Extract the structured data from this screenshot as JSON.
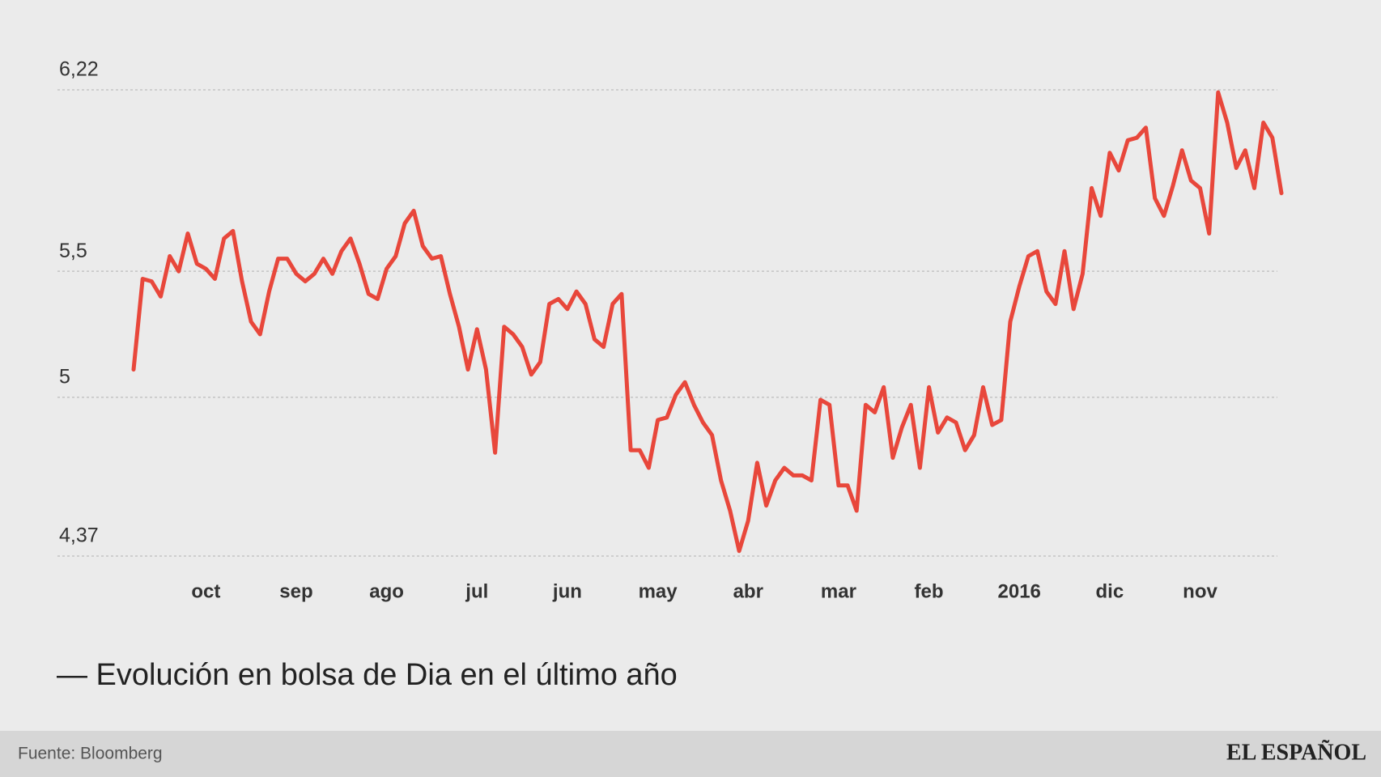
{
  "chart_data": {
    "type": "line",
    "title": "— Evolución en bolsa de Dia en el último año",
    "source": "Fuente: Bloomberg",
    "brand": "EL ESPAÑOL",
    "categories": [
      null,
      null,
      null,
      null,
      null,
      null,
      null,
      null,
      "oct",
      null,
      null,
      null,
      null,
      null,
      null,
      null,
      null,
      null,
      "sep",
      null,
      null,
      null,
      null,
      null,
      null,
      null,
      null,
      null,
      "ago",
      null,
      null,
      null,
      null,
      null,
      null,
      null,
      null,
      null,
      "jul",
      null,
      null,
      null,
      null,
      null,
      null,
      null,
      null,
      null,
      "jun",
      null,
      null,
      null,
      null,
      null,
      null,
      null,
      null,
      null,
      "may",
      null,
      null,
      null,
      null,
      null,
      null,
      null,
      null,
      null,
      "abr",
      null,
      null,
      null,
      null,
      null,
      null,
      null,
      null,
      null,
      "mar",
      null,
      null,
      null,
      null,
      null,
      null,
      null,
      null,
      null,
      "feb",
      null,
      null,
      null,
      null,
      null,
      null,
      null,
      null,
      null,
      "2016",
      null,
      null,
      null,
      null,
      null,
      null,
      null,
      null,
      null,
      "dic",
      null,
      null,
      null,
      null,
      null,
      null,
      null,
      null,
      null,
      "nov",
      null,
      null,
      null,
      null,
      null,
      null,
      null,
      null,
      null
    ],
    "series": [
      {
        "color": "#e8473b",
        "values": [
          5.11,
          5.47,
          5.46,
          5.4,
          5.56,
          5.5,
          5.65,
          5.53,
          5.51,
          5.47,
          5.63,
          5.66,
          5.46,
          5.3,
          5.25,
          5.42,
          5.55,
          5.55,
          5.49,
          5.46,
          5.49,
          5.55,
          5.49,
          5.58,
          5.63,
          5.53,
          5.41,
          5.39,
          5.51,
          5.56,
          5.69,
          5.74,
          5.6,
          5.55,
          5.56,
          5.41,
          5.28,
          5.11,
          5.27,
          5.11,
          4.78,
          5.28,
          5.25,
          5.2,
          5.09,
          5.14,
          5.37,
          5.39,
          5.35,
          5.42,
          5.37,
          5.23,
          5.2,
          5.37,
          5.41,
          4.79,
          4.79,
          4.72,
          4.91,
          4.92,
          5.01,
          5.06,
          4.97,
          4.9,
          4.85,
          4.67,
          4.55,
          4.39,
          4.51,
          4.74,
          4.57,
          4.67,
          4.72,
          4.69,
          4.69,
          4.67,
          4.99,
          4.97,
          4.65,
          4.65,
          4.55,
          4.97,
          4.94,
          5.04,
          4.76,
          4.88,
          4.97,
          4.72,
          5.04,
          4.86,
          4.92,
          4.9,
          4.79,
          4.85,
          5.04,
          4.89,
          4.91,
          5.3,
          5.44,
          5.56,
          5.58,
          5.42,
          5.37,
          5.58,
          5.35,
          5.49,
          5.83,
          5.72,
          5.97,
          5.9,
          6.02,
          6.03,
          6.07,
          5.79,
          5.72,
          5.84,
          5.98,
          5.86,
          5.83,
          5.65,
          6.21,
          6.09,
          5.91,
          5.98,
          5.83,
          6.09,
          6.03,
          5.81
        ]
      }
    ],
    "ylim": [
      4.37,
      6.22
    ],
    "yticks": [
      {
        "value": 6.22,
        "label": "6,22"
      },
      {
        "value": 5.5,
        "label": "5,5"
      },
      5,
      {
        "value": 4.37,
        "label": "4,37"
      }
    ],
    "grid": true
  }
}
